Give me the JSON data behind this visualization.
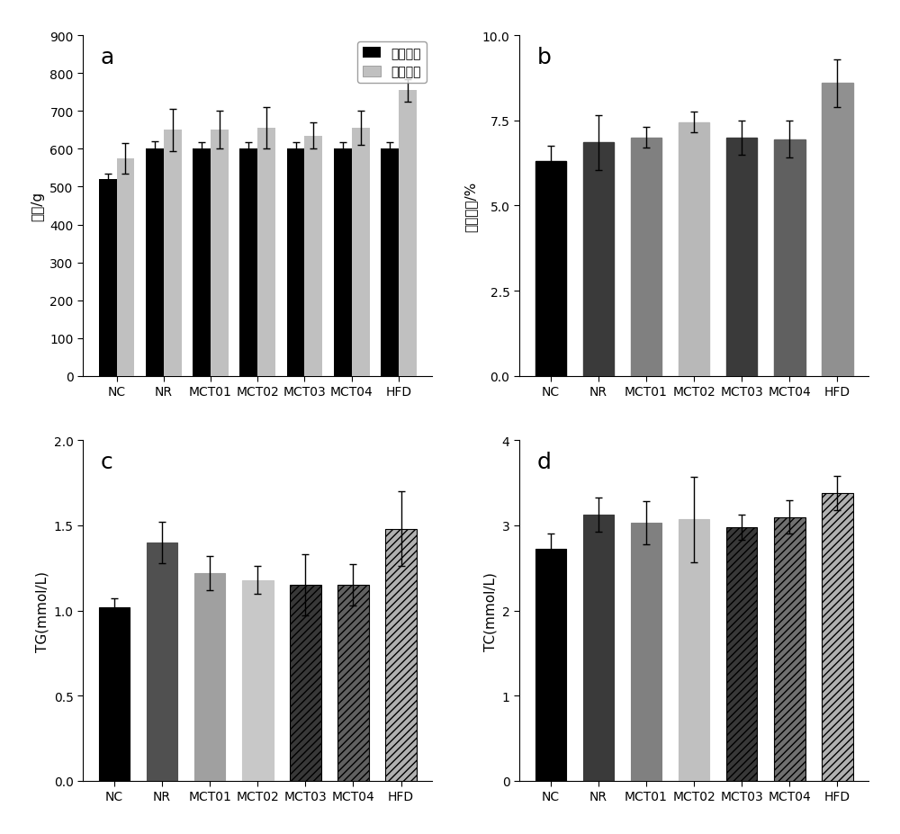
{
  "categories": [
    "NC",
    "NR",
    "MCT01",
    "MCT02",
    "MCT03",
    "MCT04",
    "HFD"
  ],
  "panel_a": {
    "title": "a",
    "ylabel": "体重/g",
    "ylim": [
      0,
      900
    ],
    "yticks": [
      0,
      100,
      200,
      300,
      400,
      500,
      600,
      700,
      800,
      900
    ],
    "initial_vals": [
      520,
      600,
      600,
      600,
      600,
      600,
      600
    ],
    "initial_errs": [
      15,
      20,
      18,
      18,
      18,
      18,
      18
    ],
    "final_vals": [
      575,
      650,
      650,
      655,
      635,
      655,
      755
    ],
    "final_errs": [
      40,
      55,
      50,
      55,
      35,
      45,
      30
    ],
    "bar_color_initial": "#000000",
    "bar_color_final": "#c0c0c0",
    "legend_labels": [
      "初始体重",
      "最终体重"
    ]
  },
  "panel_b": {
    "title": "b",
    "ylabel": "脂肪系数/%",
    "ylim": [
      0,
      10.0
    ],
    "yticks": [
      0.0,
      2.5,
      5.0,
      7.5,
      10.0
    ],
    "vals": [
      6.3,
      6.85,
      7.0,
      7.45,
      7.0,
      6.95,
      8.6
    ],
    "errs": [
      0.45,
      0.8,
      0.3,
      0.3,
      0.5,
      0.55,
      0.7
    ],
    "bar_colors": [
      "#000000",
      "#3a3a3a",
      "#808080",
      "#b8b8b8",
      "#3a3a3a",
      "#606060",
      "#909090"
    ]
  },
  "panel_c": {
    "title": "c",
    "ylabel": "TG(mmol/L)",
    "ylim": [
      0,
      2.0
    ],
    "yticks": [
      0.0,
      0.5,
      1.0,
      1.5,
      2.0
    ],
    "vals": [
      1.02,
      1.4,
      1.22,
      1.18,
      1.15,
      1.15,
      1.48
    ],
    "errs": [
      0.05,
      0.12,
      0.1,
      0.08,
      0.18,
      0.12,
      0.22
    ],
    "bar_colors": [
      "#000000",
      "#505050",
      "#a0a0a0",
      "#c8c8c8",
      "#383838",
      "#606060",
      "#b0b0b0"
    ],
    "hatches": [
      "",
      "",
      "",
      "",
      "////",
      "////",
      "////"
    ],
    "edgecolors": [
      "#000000",
      "#505050",
      "#a0a0a0",
      "#c8c8c8",
      "#000000",
      "#000000",
      "#000000"
    ]
  },
  "panel_d": {
    "title": "d",
    "ylabel": "TC(mmol/L)",
    "ylim": [
      0,
      4
    ],
    "yticks": [
      0,
      1,
      2,
      3,
      4
    ],
    "vals": [
      2.72,
      3.13,
      3.03,
      3.07,
      2.98,
      3.1,
      3.38
    ],
    "errs": [
      0.18,
      0.2,
      0.25,
      0.5,
      0.15,
      0.2,
      0.2
    ],
    "bar_colors": [
      "#000000",
      "#3a3a3a",
      "#808080",
      "#c0c0c0",
      "#383838",
      "#707070",
      "#b0b0b0"
    ],
    "hatches": [
      "",
      "",
      "",
      "",
      "////",
      "////",
      "////"
    ],
    "edgecolors": [
      "#000000",
      "#3a3a3a",
      "#808080",
      "#c0c0c0",
      "#000000",
      "#000000",
      "#000000"
    ]
  }
}
